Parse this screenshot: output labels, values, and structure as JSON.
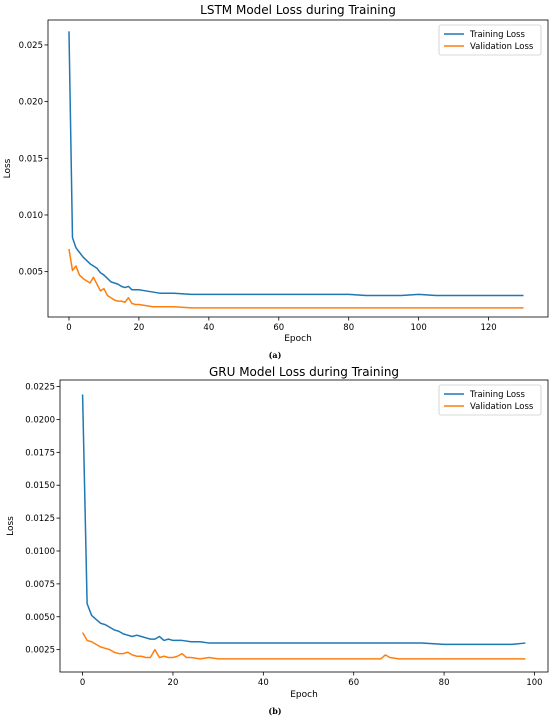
{
  "chart_data": [
    {
      "type": "line",
      "title": "LSTM Model Loss during Training",
      "xlabel": "Epoch",
      "ylabel": "Loss",
      "caption": "(a)",
      "xlim": [
        -6,
        137
      ],
      "ylim": [
        0.001,
        0.0272
      ],
      "x_ticks": [
        0,
        20,
        40,
        60,
        80,
        100,
        120
      ],
      "y_ticks": [
        0.005,
        0.01,
        0.015,
        0.02,
        0.025
      ],
      "y_tick_labels": [
        "0.005",
        "0.010",
        "0.015",
        "0.020",
        "0.025"
      ],
      "grid": false,
      "legend_position": "upper-right",
      "series": [
        {
          "name": "Training Loss",
          "color": "#1f77b4",
          "points": [
            [
              0,
              0.0262
            ],
            [
              1,
              0.008
            ],
            [
              2,
              0.0071
            ],
            [
              3,
              0.0067
            ],
            [
              4,
              0.0063
            ],
            [
              5,
              0.006
            ],
            [
              6,
              0.0057
            ],
            [
              7,
              0.0055
            ],
            [
              8,
              0.0053
            ],
            [
              9,
              0.0049
            ],
            [
              10,
              0.0047
            ],
            [
              11,
              0.0044
            ],
            [
              12,
              0.0041
            ],
            [
              13,
              0.004
            ],
            [
              14,
              0.0039
            ],
            [
              15,
              0.0037
            ],
            [
              16,
              0.0036
            ],
            [
              17,
              0.0037
            ],
            [
              18,
              0.0034
            ],
            [
              19,
              0.0034
            ],
            [
              20,
              0.0034
            ],
            [
              22,
              0.0033
            ],
            [
              24,
              0.0032
            ],
            [
              26,
              0.0031
            ],
            [
              28,
              0.0031
            ],
            [
              30,
              0.0031
            ],
            [
              35,
              0.003
            ],
            [
              40,
              0.003
            ],
            [
              45,
              0.003
            ],
            [
              50,
              0.003
            ],
            [
              55,
              0.003
            ],
            [
              60,
              0.003
            ],
            [
              65,
              0.003
            ],
            [
              70,
              0.003
            ],
            [
              75,
              0.003
            ],
            [
              80,
              0.003
            ],
            [
              85,
              0.0029
            ],
            [
              90,
              0.0029
            ],
            [
              95,
              0.0029
            ],
            [
              100,
              0.003
            ],
            [
              105,
              0.0029
            ],
            [
              110,
              0.0029
            ],
            [
              115,
              0.0029
            ],
            [
              120,
              0.0029
            ],
            [
              125,
              0.0029
            ],
            [
              130,
              0.0029
            ]
          ]
        },
        {
          "name": "Validation Loss",
          "color": "#ff7f0e",
          "points": [
            [
              0,
              0.007
            ],
            [
              1,
              0.0051
            ],
            [
              2,
              0.0055
            ],
            [
              3,
              0.0047
            ],
            [
              4,
              0.0044
            ],
            [
              5,
              0.0042
            ],
            [
              6,
              0.004
            ],
            [
              7,
              0.0045
            ],
            [
              8,
              0.0039
            ],
            [
              9,
              0.0033
            ],
            [
              10,
              0.0035
            ],
            [
              11,
              0.0029
            ],
            [
              12,
              0.0027
            ],
            [
              13,
              0.0025
            ],
            [
              14,
              0.0024
            ],
            [
              15,
              0.0024
            ],
            [
              16,
              0.0023
            ],
            [
              17,
              0.0027
            ],
            [
              18,
              0.0022
            ],
            [
              19,
              0.0021
            ],
            [
              20,
              0.0021
            ],
            [
              22,
              0.002
            ],
            [
              24,
              0.0019
            ],
            [
              26,
              0.0019
            ],
            [
              28,
              0.0019
            ],
            [
              30,
              0.0019
            ],
            [
              35,
              0.0018
            ],
            [
              40,
              0.0018
            ],
            [
              50,
              0.0018
            ],
            [
              60,
              0.0018
            ],
            [
              70,
              0.0018
            ],
            [
              80,
              0.0018
            ],
            [
              90,
              0.0018
            ],
            [
              100,
              0.0018
            ],
            [
              110,
              0.0018
            ],
            [
              120,
              0.0018
            ],
            [
              130,
              0.0018
            ]
          ]
        }
      ]
    },
    {
      "type": "line",
      "title": "GRU Model Loss during Training",
      "xlabel": "Epoch",
      "ylabel": "Loss",
      "caption": "(b)",
      "xlim": [
        -5,
        103
      ],
      "ylim": [
        0.0008,
        0.023
      ],
      "x_ticks": [
        0,
        20,
        40,
        60,
        80,
        100
      ],
      "y_ticks": [
        0.0025,
        0.005,
        0.0075,
        0.01,
        0.0125,
        0.015,
        0.0175,
        0.02,
        0.0225
      ],
      "y_tick_labels": [
        "0.0025",
        "0.0050",
        "0.0075",
        "0.0100",
        "0.0125",
        "0.0150",
        "0.0175",
        "0.0200",
        "0.0225"
      ],
      "grid": false,
      "legend_position": "upper-right",
      "series": [
        {
          "name": "Training Loss",
          "color": "#1f77b4",
          "points": [
            [
              0,
              0.0219
            ],
            [
              1,
              0.006
            ],
            [
              2,
              0.0051
            ],
            [
              3,
              0.0048
            ],
            [
              4,
              0.0045
            ],
            [
              5,
              0.0044
            ],
            [
              6,
              0.0042
            ],
            [
              7,
              0.004
            ],
            [
              8,
              0.0039
            ],
            [
              9,
              0.0037
            ],
            [
              10,
              0.0036
            ],
            [
              11,
              0.0035
            ],
            [
              12,
              0.0036
            ],
            [
              13,
              0.0035
            ],
            [
              14,
              0.0034
            ],
            [
              15,
              0.0033
            ],
            [
              16,
              0.0033
            ],
            [
              17,
              0.0035
            ],
            [
              18,
              0.0032
            ],
            [
              19,
              0.0033
            ],
            [
              20,
              0.0032
            ],
            [
              22,
              0.0032
            ],
            [
              24,
              0.0031
            ],
            [
              26,
              0.0031
            ],
            [
              28,
              0.003
            ],
            [
              30,
              0.003
            ],
            [
              35,
              0.003
            ],
            [
              40,
              0.003
            ],
            [
              45,
              0.003
            ],
            [
              50,
              0.003
            ],
            [
              55,
              0.003
            ],
            [
              60,
              0.003
            ],
            [
              65,
              0.003
            ],
            [
              70,
              0.003
            ],
            [
              75,
              0.003
            ],
            [
              80,
              0.0029
            ],
            [
              85,
              0.0029
            ],
            [
              90,
              0.0029
            ],
            [
              95,
              0.0029
            ],
            [
              98,
              0.003
            ]
          ]
        },
        {
          "name": "Validation Loss",
          "color": "#ff7f0e",
          "points": [
            [
              0,
              0.0038
            ],
            [
              1,
              0.0032
            ],
            [
              2,
              0.0031
            ],
            [
              3,
              0.0029
            ],
            [
              4,
              0.0027
            ],
            [
              5,
              0.0026
            ],
            [
              6,
              0.0025
            ],
            [
              7,
              0.0023
            ],
            [
              8,
              0.0022
            ],
            [
              9,
              0.0022
            ],
            [
              10,
              0.0023
            ],
            [
              11,
              0.0021
            ],
            [
              12,
              0.002
            ],
            [
              13,
              0.002
            ],
            [
              14,
              0.0019
            ],
            [
              15,
              0.0019
            ],
            [
              16,
              0.0025
            ],
            [
              17,
              0.0019
            ],
            [
              18,
              0.002
            ],
            [
              19,
              0.0019
            ],
            [
              20,
              0.0019
            ],
            [
              21,
              0.002
            ],
            [
              22,
              0.0022
            ],
            [
              23,
              0.0019
            ],
            [
              24,
              0.0019
            ],
            [
              26,
              0.0018
            ],
            [
              28,
              0.0019
            ],
            [
              30,
              0.0018
            ],
            [
              40,
              0.0018
            ],
            [
              50,
              0.0018
            ],
            [
              60,
              0.0018
            ],
            [
              66,
              0.0018
            ],
            [
              67,
              0.0021
            ],
            [
              68,
              0.0019
            ],
            [
              70,
              0.0018
            ],
            [
              80,
              0.0018
            ],
            [
              90,
              0.0018
            ],
            [
              98,
              0.0018
            ]
          ]
        }
      ]
    }
  ]
}
